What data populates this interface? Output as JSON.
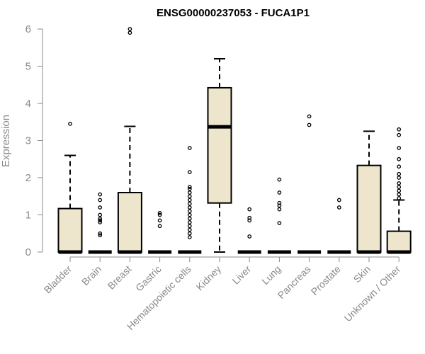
{
  "chart_data": {
    "type": "boxplot",
    "title": "ENSG00000237053 - FUCA1P1",
    "xlabel": "",
    "ylabel": "Expression",
    "ylim": [
      0,
      6
    ],
    "yticks": [
      0,
      1,
      2,
      3,
      4,
      5,
      6
    ],
    "categories": [
      "Bladder",
      "Brain",
      "Breast",
      "Gastric",
      "Hematopoietic cells",
      "Kidney",
      "Liver",
      "Lung",
      "Pancreas",
      "Prostate",
      "Skin",
      "Unknown / Other"
    ],
    "box_fill": "#ede6cd",
    "series": [
      {
        "name": "Bladder",
        "min": 0,
        "q1": 0,
        "median": 0,
        "q3": 1.17,
        "max": 2.6,
        "outliers": [
          3.45
        ]
      },
      {
        "name": "Brain",
        "min": 0,
        "q1": 0,
        "median": 0,
        "q3": 0,
        "max": 0,
        "outliers": [
          0.45,
          0.5,
          0.8,
          0.85,
          0.9,
          1.0,
          1.2,
          1.4,
          1.55
        ]
      },
      {
        "name": "Breast",
        "min": 0,
        "q1": 0,
        "median": 0,
        "q3": 1.6,
        "max": 3.38,
        "outliers": [
          5.9,
          6.0
        ]
      },
      {
        "name": "Gastric",
        "min": 0,
        "q1": 0,
        "median": 0,
        "q3": 0,
        "max": 0,
        "outliers": [
          0.7,
          0.85,
          1.0,
          1.05
        ]
      },
      {
        "name": "Hematopoietic cells",
        "min": 0,
        "q1": 0,
        "median": 0,
        "q3": 0,
        "max": 0,
        "outliers": [
          0.4,
          0.5,
          0.6,
          0.7,
          0.8,
          0.9,
          1.0,
          1.1,
          1.2,
          1.3,
          1.4,
          1.5,
          1.6,
          1.7,
          1.75,
          2.15,
          2.8
        ]
      },
      {
        "name": "Kidney",
        "min": 0,
        "q1": 1.32,
        "median": 3.37,
        "q3": 4.42,
        "max": 5.2,
        "outliers": []
      },
      {
        "name": "Liver",
        "min": 0,
        "q1": 0,
        "median": 0,
        "q3": 0,
        "max": 0,
        "outliers": [
          0.42,
          0.85,
          0.92,
          1.15
        ]
      },
      {
        "name": "Lung",
        "min": 0,
        "q1": 0,
        "median": 0,
        "q3": 0,
        "max": 0,
        "outliers": [
          0.78,
          1.15,
          1.25,
          1.32,
          1.6,
          1.95
        ]
      },
      {
        "name": "Pancreas",
        "min": 0,
        "q1": 0,
        "median": 0,
        "q3": 0,
        "max": 0,
        "outliers": [
          3.42,
          3.65
        ]
      },
      {
        "name": "Prostate",
        "min": 0,
        "q1": 0,
        "median": 0,
        "q3": 0,
        "max": 0,
        "outliers": [
          1.2,
          1.4
        ]
      },
      {
        "name": "Skin",
        "min": 0,
        "q1": 0,
        "median": 0,
        "q3": 2.33,
        "max": 3.25,
        "outliers": []
      },
      {
        "name": "Unknown / Other",
        "min": 0,
        "q1": 0,
        "median": 0,
        "q3": 0.56,
        "max": 1.4,
        "outliers": [
          1.45,
          1.55,
          1.65,
          1.75,
          1.85,
          2.0,
          2.1,
          2.3,
          2.5,
          2.8,
          3.15,
          3.3
        ]
      }
    ]
  }
}
